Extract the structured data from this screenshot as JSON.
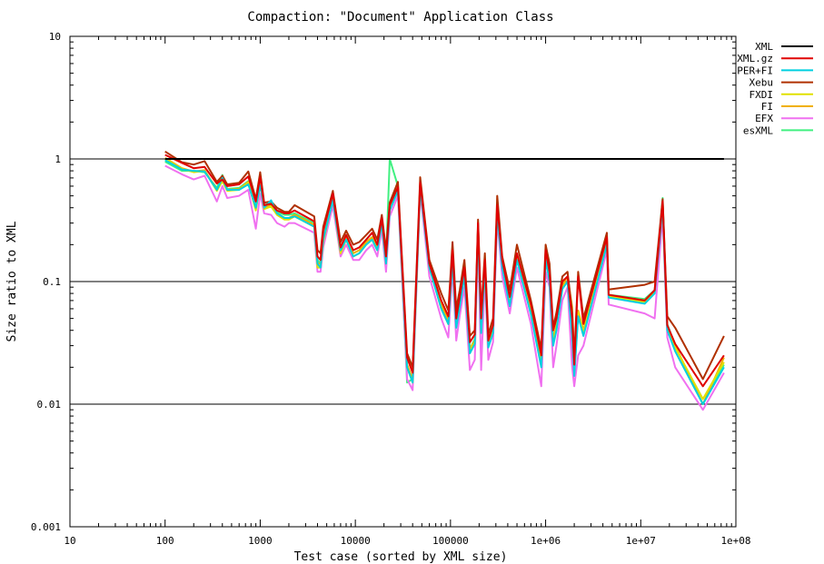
{
  "chart_data": {
    "type": "line",
    "title": "Compaction: \"Document\" Application Class",
    "xlabel": "Test case (sorted by XML size)",
    "ylabel": "Size ratio to XML",
    "x_scale": "log",
    "y_scale": "log",
    "xlim": [
      10,
      100000000
    ],
    "ylim": [
      0.001,
      10
    ],
    "x_ticks": [
      {
        "value": 10,
        "label": "10"
      },
      {
        "value": 100,
        "label": "100"
      },
      {
        "value": 1000,
        "label": "1000"
      },
      {
        "value": 10000,
        "label": "10000"
      },
      {
        "value": 100000,
        "label": "100000"
      },
      {
        "value": 1000000,
        "label": "1e+06"
      },
      {
        "value": 10000000,
        "label": "1e+07"
      },
      {
        "value": 100000000,
        "label": "1e+08"
      }
    ],
    "y_ticks": [
      {
        "value": 10,
        "label": "10"
      },
      {
        "value": 1,
        "label": "1"
      },
      {
        "value": 0.1,
        "label": "0.1"
      },
      {
        "value": 0.01,
        "label": "0.01"
      },
      {
        "value": 0.001,
        "label": "0.001"
      }
    ],
    "gridlines_y": [
      1,
      0.1,
      0.01
    ],
    "legend_position": "top-right",
    "x": [
      100,
      150,
      200,
      260,
      350,
      400,
      450,
      600,
      750,
      900,
      1000,
      1100,
      1300,
      1500,
      1800,
      2000,
      2300,
      3700,
      4000,
      4300,
      4600,
      5800,
      7000,
      8000,
      9500,
      11000,
      13000,
      15000,
      17000,
      19000,
      21000,
      23000,
      28000,
      35000,
      40000,
      48000,
      60000,
      80000,
      95000,
      105000,
      115000,
      125000,
      140000,
      160000,
      180000,
      195000,
      210000,
      230000,
      250000,
      280000,
      310000,
      350000,
      420000,
      500000,
      700000,
      900000,
      1000000,
      1100000,
      1200000,
      1300000,
      1500000,
      1700000,
      1900000,
      2000000,
      2200000,
      2500000,
      4400000,
      4600000,
      11000000,
      14000000,
      17000000,
      19000000,
      23000000,
      45000000,
      75000000
    ],
    "series": [
      {
        "name": "XML",
        "color": "#000000",
        "values": [
          1,
          1,
          1,
          1,
          1,
          1,
          1,
          1,
          1,
          1,
          1,
          1,
          1,
          1,
          1,
          1,
          1,
          1,
          1,
          1,
          1,
          1,
          1,
          1,
          1,
          1,
          1,
          1,
          1,
          1,
          1,
          1,
          1,
          1,
          1,
          1,
          1,
          1,
          1,
          1,
          1,
          1,
          1,
          1,
          1,
          1,
          1,
          1,
          1,
          1,
          1,
          1,
          1,
          1,
          1,
          1,
          1,
          1,
          1,
          1,
          1,
          1,
          1,
          1,
          1,
          1,
          1,
          1,
          1,
          1,
          1,
          1,
          1,
          1,
          1
        ]
      },
      {
        "name": "XML.gz",
        "color": "#e00000",
        "values": [
          1.08,
          0.93,
          0.84,
          0.86,
          0.63,
          0.68,
          0.6,
          0.62,
          0.72,
          0.45,
          0.71,
          0.42,
          0.43,
          0.38,
          0.36,
          0.36,
          0.38,
          0.31,
          0.16,
          0.15,
          0.26,
          0.52,
          0.19,
          0.24,
          0.18,
          0.19,
          0.22,
          0.25,
          0.2,
          0.33,
          0.16,
          0.42,
          0.59,
          0.024,
          0.018,
          0.64,
          0.14,
          0.07,
          0.052,
          0.18,
          0.05,
          0.075,
          0.13,
          0.032,
          0.037,
          0.3,
          0.05,
          0.15,
          0.033,
          0.044,
          0.42,
          0.15,
          0.075,
          0.17,
          0.065,
          0.025,
          0.18,
          0.12,
          0.04,
          0.05,
          0.1,
          0.11,
          0.05,
          0.021,
          0.11,
          0.045,
          0.23,
          0.078,
          0.07,
          0.085,
          0.45,
          0.044,
          0.031,
          0.014,
          0.025
        ]
      },
      {
        "name": "PER+FI",
        "color": "#00d0e0",
        "values": [
          0.98,
          0.82,
          0.8,
          0.79,
          0.56,
          0.7,
          0.56,
          0.56,
          0.62,
          0.4,
          0.61,
          0.4,
          0.46,
          0.36,
          0.33,
          0.33,
          0.34,
          0.28,
          0.14,
          0.13,
          0.22,
          0.46,
          0.18,
          0.22,
          0.16,
          0.17,
          0.2,
          0.22,
          0.18,
          0.3,
          0.14,
          0.38,
          0.55,
          0.02,
          0.015,
          0.58,
          0.13,
          0.06,
          0.045,
          0.15,
          0.042,
          0.062,
          0.11,
          0.026,
          0.031,
          0.26,
          0.038,
          0.13,
          0.029,
          0.038,
          0.36,
          0.13,
          0.063,
          0.15,
          0.054,
          0.02,
          0.15,
          0.1,
          0.03,
          0.04,
          0.087,
          0.1,
          0.036,
          0.017,
          0.052,
          0.036,
          0.2,
          0.074,
          0.066,
          0.08,
          0.41,
          0.04,
          0.027,
          0.01,
          0.02
        ]
      },
      {
        "name": "Xebu",
        "color": "#b03000",
        "values": [
          1.15,
          0.94,
          0.9,
          0.96,
          0.65,
          0.73,
          0.62,
          0.64,
          0.79,
          0.47,
          0.78,
          0.44,
          0.45,
          0.4,
          0.37,
          0.37,
          0.42,
          0.34,
          0.18,
          0.17,
          0.28,
          0.55,
          0.21,
          0.26,
          0.2,
          0.21,
          0.24,
          0.27,
          0.22,
          0.35,
          0.18,
          0.44,
          0.65,
          0.026,
          0.02,
          0.71,
          0.15,
          0.08,
          0.058,
          0.21,
          0.06,
          0.085,
          0.15,
          0.036,
          0.04,
          0.32,
          0.055,
          0.17,
          0.037,
          0.05,
          0.5,
          0.16,
          0.085,
          0.2,
          0.07,
          0.028,
          0.2,
          0.14,
          0.042,
          0.056,
          0.11,
          0.12,
          0.056,
          0.024,
          0.12,
          0.05,
          0.25,
          0.086,
          0.094,
          0.1,
          0.47,
          0.052,
          0.042,
          0.016,
          0.036
        ]
      },
      {
        "name": "FXDI",
        "color": "#e0e000",
        "values": [
          1.0,
          0.83,
          0.78,
          0.8,
          0.55,
          0.66,
          0.55,
          0.56,
          0.64,
          0.38,
          0.62,
          0.39,
          0.41,
          0.35,
          0.32,
          0.32,
          0.34,
          0.28,
          0.13,
          0.13,
          0.21,
          0.47,
          0.17,
          0.22,
          0.16,
          0.17,
          0.2,
          0.22,
          0.18,
          0.3,
          0.14,
          0.39,
          0.56,
          0.02,
          0.015,
          0.6,
          0.13,
          0.06,
          0.045,
          0.16,
          0.043,
          0.064,
          0.12,
          0.027,
          0.032,
          0.27,
          0.04,
          0.13,
          0.03,
          0.04,
          0.4,
          0.14,
          0.066,
          0.16,
          0.056,
          0.021,
          0.16,
          0.11,
          0.032,
          0.042,
          0.09,
          0.1,
          0.04,
          0.019,
          0.056,
          0.038,
          0.21,
          0.076,
          0.068,
          0.082,
          0.42,
          0.042,
          0.029,
          0.011,
          0.022
        ]
      },
      {
        "name": "FI",
        "color": "#f0b000",
        "values": [
          1.02,
          0.84,
          0.79,
          0.81,
          0.56,
          0.67,
          0.56,
          0.57,
          0.65,
          0.39,
          0.63,
          0.4,
          0.42,
          0.36,
          0.33,
          0.33,
          0.35,
          0.29,
          0.14,
          0.14,
          0.22,
          0.48,
          0.18,
          0.23,
          0.17,
          0.18,
          0.21,
          0.23,
          0.19,
          0.31,
          0.15,
          0.4,
          0.57,
          0.021,
          0.016,
          0.61,
          0.14,
          0.065,
          0.048,
          0.16,
          0.045,
          0.066,
          0.12,
          0.028,
          0.033,
          0.28,
          0.042,
          0.14,
          0.031,
          0.042,
          0.44,
          0.14,
          0.068,
          0.16,
          0.058,
          0.022,
          0.17,
          0.11,
          0.034,
          0.044,
          0.092,
          0.11,
          0.062,
          0.024,
          0.058,
          0.04,
          0.22,
          0.077,
          0.07,
          0.084,
          0.43,
          0.043,
          0.03,
          0.01,
          0.024
        ]
      },
      {
        "name": "EFX",
        "color": "#f070f0",
        "values": [
          0.88,
          0.75,
          0.68,
          0.73,
          0.45,
          0.6,
          0.48,
          0.5,
          0.56,
          0.27,
          0.52,
          0.36,
          0.35,
          0.3,
          0.28,
          0.3,
          0.3,
          0.25,
          0.12,
          0.12,
          0.19,
          0.42,
          0.16,
          0.2,
          0.15,
          0.15,
          0.18,
          0.2,
          0.16,
          0.27,
          0.12,
          0.34,
          0.5,
          0.016,
          0.013,
          0.54,
          0.11,
          0.05,
          0.035,
          0.13,
          0.033,
          0.052,
          0.09,
          0.019,
          0.023,
          0.23,
          0.019,
          0.11,
          0.023,
          0.032,
          0.32,
          0.11,
          0.055,
          0.13,
          0.045,
          0.014,
          0.12,
          0.09,
          0.02,
          0.03,
          0.07,
          0.09,
          0.02,
          0.014,
          0.025,
          0.03,
          0.18,
          0.065,
          0.055,
          0.05,
          0.35,
          0.035,
          0.02,
          0.009,
          0.018
        ]
      },
      {
        "name": "esXML",
        "color": "#40f080",
        "values": [
          0.95,
          0.8,
          0.8,
          0.78,
          0.58,
          0.74,
          0.57,
          0.58,
          0.66,
          0.42,
          0.64,
          0.42,
          0.44,
          0.37,
          0.35,
          0.35,
          0.36,
          0.3,
          0.15,
          0.14,
          0.24,
          0.49,
          0.19,
          0.24,
          0.17,
          0.18,
          0.21,
          0.23,
          0.19,
          0.32,
          0.15,
          1.0,
          0.6,
          0.015,
          0.016,
          0.62,
          0.14,
          0.065,
          0.048,
          0.17,
          0.045,
          0.068,
          0.12,
          0.028,
          0.034,
          0.29,
          0.045,
          0.14,
          0.031,
          0.042,
          0.38,
          0.14,
          0.068,
          0.16,
          0.058,
          0.022,
          0.16,
          0.11,
          0.034,
          0.044,
          0.095,
          0.11,
          0.042,
          0.018,
          0.055,
          0.04,
          0.21,
          0.078,
          0.072,
          0.085,
          0.48,
          0.045,
          0.03,
          0.01,
          0.021
        ]
      }
    ]
  }
}
